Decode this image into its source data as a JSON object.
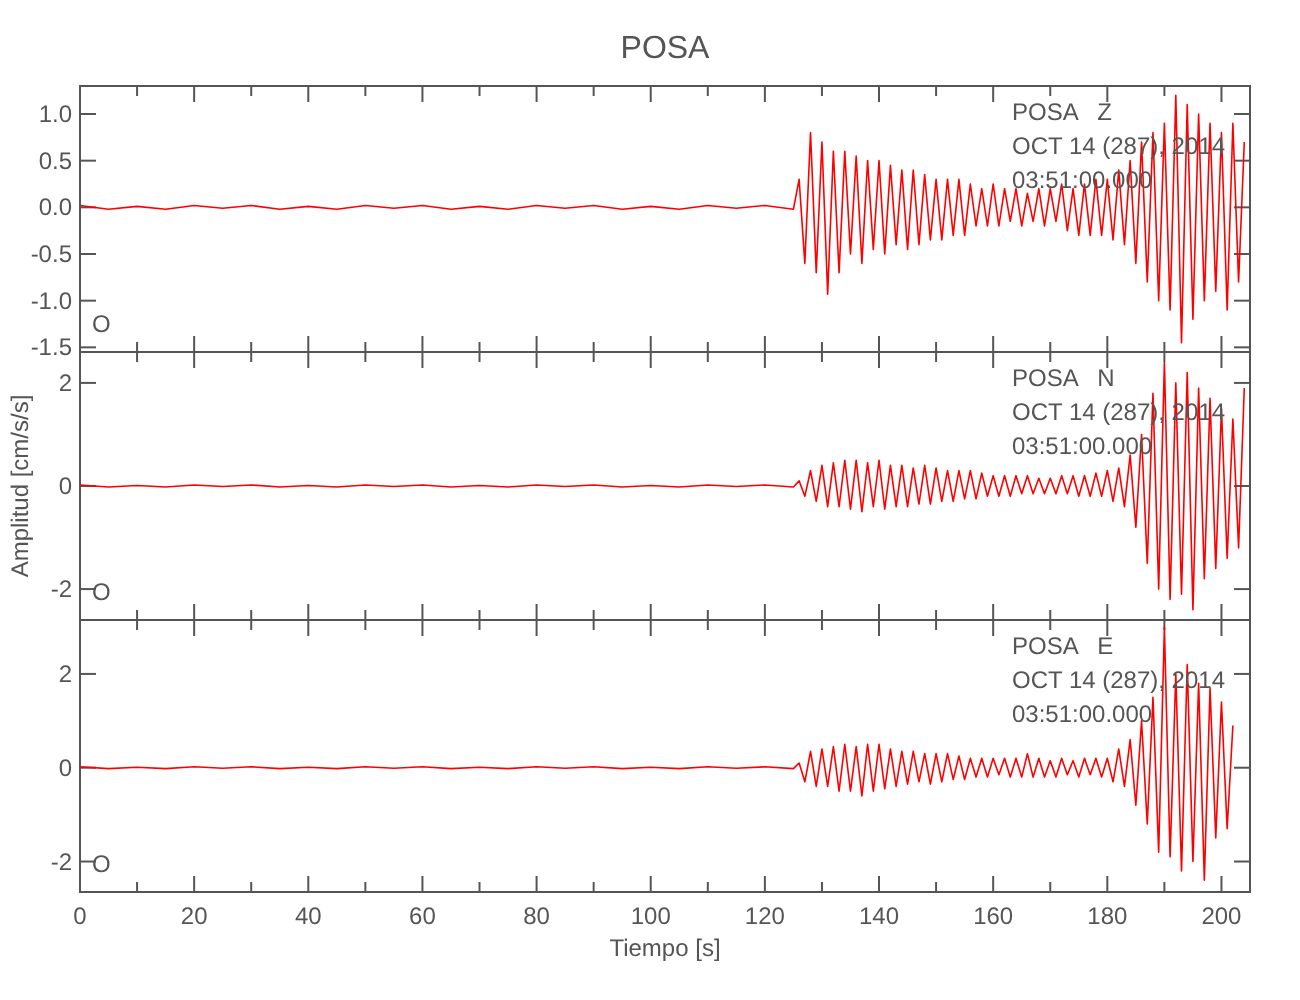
{
  "chart_data": [
    {
      "type": "line",
      "title": "POSA",
      "xlim": [
        0,
        205
      ],
      "ylim": [
        -1.55,
        1.3
      ],
      "tick_labels": "y",
      "xticks": [
        0,
        {
          "value": 10,
          "label": null
        },
        20,
        {
          "value": 30,
          "label": null
        },
        40,
        {
          "value": 50,
          "label": null
        },
        60,
        {
          "value": 70,
          "label": null
        },
        80,
        {
          "value": 90,
          "label": null
        },
        100,
        {
          "value": 110,
          "label": null
        },
        120,
        {
          "value": 130,
          "label": null
        },
        140,
        {
          "value": 150,
          "label": null
        },
        160,
        {
          "value": 170,
          "label": null
        },
        180,
        {
          "value": 190,
          "label": null
        },
        200
      ],
      "yticks": [
        -1.5,
        {
          "value": -1,
          "label": "-1.0"
        },
        -0.5,
        {
          "value": 0,
          "label": "0.0"
        },
        0.5,
        {
          "value": 1,
          "label": "1.0"
        }
      ],
      "annotations": [
        "POSA   Z",
        "OCT 14 (287), 2014",
        "03:51:00.000",
        "O"
      ],
      "series": [
        {
          "color": "#ff0000",
          "x": [
            0,
            5,
            10,
            15,
            20,
            25,
            30,
            35,
            40,
            45,
            50,
            55,
            60,
            65,
            70,
            75,
            80,
            85,
            90,
            95,
            100,
            105,
            110,
            115,
            120,
            125,
            126,
            127,
            128,
            129,
            130,
            131,
            132,
            133,
            134,
            135,
            136,
            137,
            138,
            139,
            140,
            141,
            142,
            143,
            144,
            145,
            146,
            147,
            148,
            149,
            150,
            151,
            152,
            153,
            154,
            155,
            156,
            157,
            158,
            159,
            160,
            161,
            162,
            163,
            164,
            165,
            166,
            167,
            168,
            169,
            170,
            171,
            172,
            173,
            174,
            175,
            176,
            177,
            178,
            179,
            180,
            181,
            182,
            183,
            184,
            185,
            186,
            187,
            188,
            189,
            190,
            191,
            192,
            193,
            194,
            195,
            196,
            197,
            198,
            199,
            200,
            201,
            202,
            203,
            204
          ],
          "values": [
            0.02,
            -0.02,
            0.01,
            -0.02,
            0.02,
            -0.01,
            0.02,
            -0.02,
            0.01,
            -0.02,
            0.02,
            -0.01,
            0.02,
            -0.02,
            0.01,
            -0.02,
            0.02,
            -0.01,
            0.02,
            -0.02,
            0.01,
            -0.02,
            0.02,
            -0.01,
            0.02,
            -0.02,
            0.3,
            -0.6,
            0.8,
            -0.7,
            0.7,
            -0.93,
            0.6,
            -0.7,
            0.6,
            -0.5,
            0.55,
            -0.6,
            0.5,
            -0.45,
            0.5,
            -0.5,
            0.45,
            -0.4,
            0.4,
            -0.45,
            0.4,
            -0.4,
            0.35,
            -0.35,
            0.3,
            -0.35,
            0.3,
            -0.3,
            0.3,
            -0.3,
            0.25,
            -0.2,
            0.2,
            -0.2,
            0.25,
            -0.2,
            0.2,
            -0.15,
            0.2,
            -0.2,
            0.15,
            -0.15,
            0.2,
            -0.2,
            0.2,
            -0.15,
            0.25,
            -0.25,
            0.2,
            -0.3,
            0.25,
            -0.3,
            0.3,
            -0.3,
            0.3,
            -0.35,
            0.4,
            -0.4,
            0.5,
            -0.6,
            0.7,
            -0.8,
            0.8,
            -1.0,
            0.9,
            -1.1,
            1.2,
            -1.45,
            1.1,
            -1.2,
            1.0,
            -1.0,
            0.9,
            -0.9,
            0.8,
            -1.1,
            0.9,
            -0.8,
            0.7
          ]
        }
      ]
    },
    {
      "type": "line",
      "ylabel": "Amplitud [cm/s/s]",
      "xlim": [
        0,
        205
      ],
      "ylim": [
        -2.6,
        2.6
      ],
      "tick_labels": "y",
      "xticks": [
        0,
        {
          "value": 10,
          "label": null
        },
        20,
        {
          "value": 30,
          "label": null
        },
        40,
        {
          "value": 50,
          "label": null
        },
        60,
        {
          "value": 70,
          "label": null
        },
        80,
        {
          "value": 90,
          "label": null
        },
        100,
        {
          "value": 110,
          "label": null
        },
        120,
        {
          "value": 130,
          "label": null
        },
        140,
        {
          "value": 150,
          "label": null
        },
        160,
        {
          "value": 170,
          "label": null
        },
        180,
        {
          "value": 190,
          "label": null
        },
        200
      ],
      "yticks": [
        -2,
        0,
        2
      ],
      "annotations": [
        "POSA   N",
        "OCT 14 (287), 2014",
        "03:51:00.000",
        "O"
      ],
      "series": [
        {
          "color": "#ff0000",
          "x": [
            0,
            5,
            10,
            15,
            20,
            25,
            30,
            35,
            40,
            45,
            50,
            55,
            60,
            65,
            70,
            75,
            80,
            85,
            90,
            95,
            100,
            105,
            110,
            115,
            120,
            125,
            126,
            127,
            128,
            129,
            130,
            131,
            132,
            133,
            134,
            135,
            136,
            137,
            138,
            139,
            140,
            141,
            142,
            143,
            144,
            145,
            146,
            147,
            148,
            149,
            150,
            151,
            152,
            153,
            154,
            155,
            156,
            157,
            158,
            159,
            160,
            161,
            162,
            163,
            164,
            165,
            166,
            167,
            168,
            169,
            170,
            171,
            172,
            173,
            174,
            175,
            176,
            177,
            178,
            179,
            180,
            181,
            182,
            183,
            184,
            185,
            186,
            187,
            188,
            189,
            190,
            191,
            192,
            193,
            194,
            195,
            196,
            197,
            198,
            199,
            200,
            201,
            202,
            203,
            204
          ],
          "values": [
            0.02,
            -0.02,
            0.01,
            -0.02,
            0.02,
            -0.01,
            0.02,
            -0.02,
            0.01,
            -0.02,
            0.02,
            -0.01,
            0.02,
            -0.02,
            0.01,
            -0.02,
            0.02,
            -0.01,
            0.02,
            -0.02,
            0.01,
            -0.02,
            0.02,
            -0.01,
            0.02,
            -0.02,
            0.1,
            -0.2,
            0.3,
            -0.3,
            0.4,
            -0.4,
            0.45,
            -0.4,
            0.5,
            -0.45,
            0.5,
            -0.5,
            0.45,
            -0.4,
            0.5,
            -0.45,
            0.4,
            -0.4,
            0.4,
            -0.4,
            0.35,
            -0.35,
            0.4,
            -0.35,
            0.35,
            -0.3,
            0.3,
            -0.3,
            0.3,
            -0.25,
            0.3,
            -0.25,
            0.25,
            -0.2,
            0.2,
            -0.2,
            0.2,
            -0.2,
            0.2,
            -0.15,
            0.2,
            -0.15,
            0.15,
            -0.15,
            0.15,
            -0.15,
            0.2,
            -0.15,
            0.2,
            -0.2,
            0.2,
            -0.2,
            0.25,
            -0.2,
            0.3,
            -0.3,
            0.35,
            -0.4,
            0.6,
            -0.8,
            1.0,
            -1.5,
            1.8,
            -2.0,
            2.4,
            -2.2,
            2.0,
            -2.1,
            2.2,
            -2.4,
            1.9,
            -1.8,
            1.7,
            -1.6,
            1.5,
            -1.4,
            1.3,
            -1.2,
            1.9
          ]
        }
      ]
    },
    {
      "type": "line",
      "xlabel": "Tiempo [s]",
      "xlim": [
        0,
        205
      ],
      "ylim": [
        -2.65,
        3.15
      ],
      "xticks": [
        0,
        {
          "value": 10,
          "label": null
        },
        20,
        {
          "value": 30,
          "label": null
        },
        40,
        {
          "value": 50,
          "label": null
        },
        60,
        {
          "value": 70,
          "label": null
        },
        80,
        {
          "value": 90,
          "label": null
        },
        100,
        {
          "value": 110,
          "label": null
        },
        120,
        {
          "value": 130,
          "label": null
        },
        140,
        {
          "value": 150,
          "label": null
        },
        160,
        {
          "value": 170,
          "label": null
        },
        180,
        {
          "value": 190,
          "label": null
        },
        200
      ],
      "yticks": [
        -2,
        0,
        2
      ],
      "annotations": [
        "POSA   E",
        "OCT 14 (287), 2014",
        "03:51:00.000",
        "O"
      ],
      "series": [
        {
          "color": "#ff0000",
          "x": [
            0,
            5,
            10,
            15,
            20,
            25,
            30,
            35,
            40,
            45,
            50,
            55,
            60,
            65,
            70,
            75,
            80,
            85,
            90,
            95,
            100,
            105,
            110,
            115,
            120,
            125,
            126,
            127,
            128,
            129,
            130,
            131,
            132,
            133,
            134,
            135,
            136,
            137,
            138,
            139,
            140,
            141,
            142,
            143,
            144,
            145,
            146,
            147,
            148,
            149,
            150,
            151,
            152,
            153,
            154,
            155,
            156,
            157,
            158,
            159,
            160,
            161,
            162,
            163,
            164,
            165,
            166,
            167,
            168,
            169,
            170,
            171,
            172,
            173,
            174,
            175,
            176,
            177,
            178,
            179,
            180,
            181,
            182,
            183,
            184,
            185,
            186,
            187,
            188,
            189,
            190,
            191,
            192,
            193,
            194,
            195,
            196,
            197,
            198,
            199,
            200,
            201,
            202
          ],
          "values": [
            0.02,
            -0.02,
            0.01,
            -0.02,
            0.02,
            -0.01,
            0.02,
            -0.02,
            0.01,
            -0.02,
            0.02,
            -0.01,
            0.02,
            -0.02,
            0.01,
            -0.02,
            0.02,
            -0.01,
            0.02,
            -0.02,
            0.01,
            -0.02,
            0.02,
            -0.01,
            0.02,
            -0.02,
            0.1,
            -0.3,
            0.35,
            -0.4,
            0.4,
            -0.4,
            0.45,
            -0.5,
            0.5,
            -0.5,
            0.45,
            -0.6,
            0.5,
            -0.5,
            0.5,
            -0.45,
            0.4,
            -0.4,
            0.35,
            -0.35,
            0.35,
            -0.3,
            0.3,
            -0.35,
            0.3,
            -0.3,
            0.3,
            -0.25,
            0.25,
            -0.25,
            0.2,
            -0.2,
            0.2,
            -0.2,
            0.2,
            -0.15,
            0.2,
            -0.2,
            0.2,
            -0.2,
            0.3,
            -0.2,
            0.2,
            -0.2,
            0.15,
            -0.2,
            0.2,
            -0.15,
            0.15,
            -0.2,
            0.2,
            -0.15,
            0.2,
            -0.2,
            0.2,
            -0.3,
            0.4,
            -0.4,
            0.6,
            -0.8,
            1.0,
            -1.2,
            1.5,
            -1.8,
            3.0,
            -1.9,
            2.0,
            -2.2,
            2.2,
            -2.0,
            1.8,
            -2.4,
            1.7,
            -1.5,
            1.4,
            -1.3,
            0.9
          ]
        }
      ]
    }
  ]
}
